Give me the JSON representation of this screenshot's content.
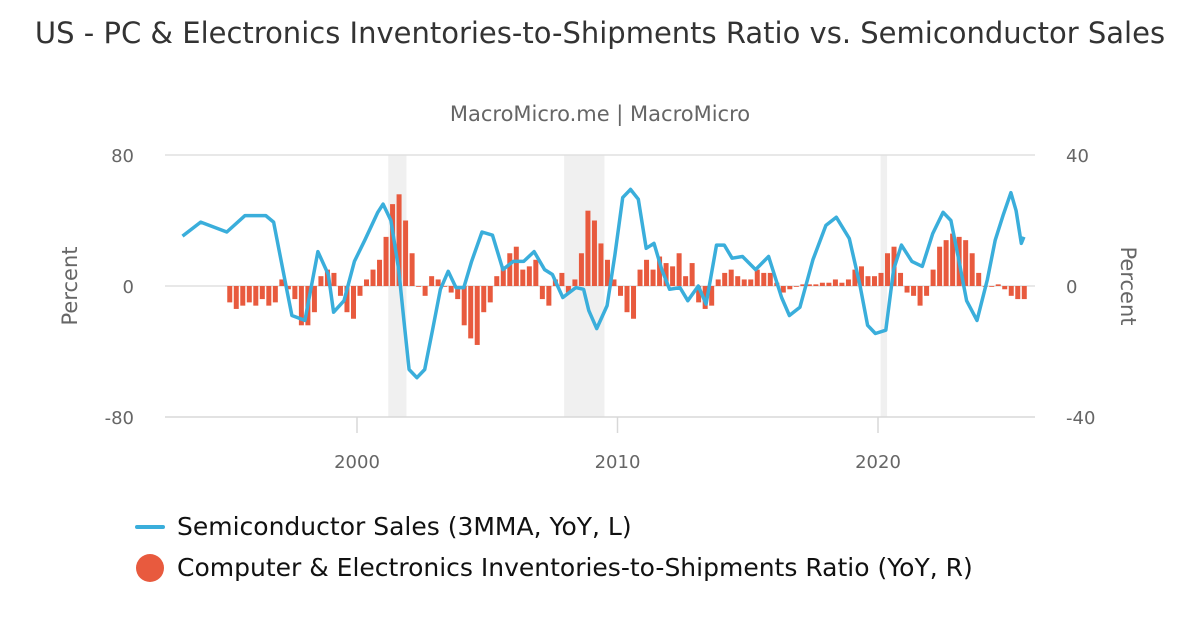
{
  "chart_data": {
    "type": "bar+line",
    "title": "US - PC & Electronics Inventories-to-Shipments Ratio vs. Semiconductor Sales",
    "subtitle": "MacroMicro.me | MacroMicro",
    "ylabel_left": "Percent",
    "ylabel_right": "Percent",
    "ylim_left": [
      -80,
      80
    ],
    "ylim_right": [
      -40,
      40
    ],
    "yticks_left": [
      "80",
      "0",
      "-80"
    ],
    "yticks_right": [
      "40",
      "0",
      "-40"
    ],
    "xticks": [
      "2000",
      "2010",
      "2020"
    ],
    "grid": true,
    "legend_position": "bottom",
    "recession_shading": [
      [
        2001.2,
        2001.9
      ],
      [
        2007.95,
        2009.5
      ],
      [
        2020.1,
        2020.35
      ]
    ],
    "colors": {
      "line": "#3aaedb",
      "bars": "#e85a3e",
      "recession": "#f0f0f0"
    },
    "series": [
      {
        "name": "Semiconductor Sales (3MMA, YoY, L)",
        "type": "line",
        "axis": "left",
        "x": [
          1993.3,
          1994,
          1995,
          1995.7,
          1996.5,
          1996.8,
          1997.3,
          1997.5,
          1998,
          1998.5,
          1998.9,
          1999.1,
          1999.5,
          1999.9,
          2000.3,
          2000.8,
          2001,
          2001.3,
          2001.6,
          2001.8,
          2002,
          2002.3,
          2002.6,
          2002.9,
          2003.2,
          2003.5,
          2003.8,
          2004.1,
          2004.4,
          2004.8,
          2005.2,
          2005.6,
          2006,
          2006.4,
          2006.8,
          2007.2,
          2007.5,
          2007.9,
          2008.4,
          2008.7,
          2008.9,
          2009.2,
          2009.6,
          2009.9,
          2010.2,
          2010.5,
          2010.8,
          2011.1,
          2011.4,
          2011.7,
          2012,
          2012.4,
          2012.7,
          2013.1,
          2013.4,
          2013.8,
          2014.1,
          2014.4,
          2014.8,
          2015.3,
          2015.8,
          2016.3,
          2016.6,
          2017,
          2017.5,
          2018,
          2018.4,
          2018.9,
          2019.3,
          2019.6,
          2019.9,
          2020.3,
          2020.6,
          2020.9,
          2021.3,
          2021.7,
          2022.1,
          2022.5,
          2022.8,
          2023.1,
          2023.4,
          2023.8,
          2024.2,
          2024.5,
          2024.8,
          2025.1,
          2025.3,
          2025.5,
          2025.6
        ],
        "values": [
          30.5,
          39,
          33,
          43,
          43,
          39,
          -2,
          -18,
          -21,
          21,
          7,
          -16,
          -9,
          15,
          28,
          45,
          50,
          40,
          10,
          -21,
          -51,
          -56,
          -51,
          -27,
          -2,
          9,
          -1,
          -1,
          15,
          33,
          31,
          10,
          15,
          15,
          21,
          10,
          7,
          -7,
          -1,
          -2,
          -15,
          -26,
          -12,
          19,
          54,
          59,
          53,
          23,
          26,
          10,
          -2,
          -1,
          -9,
          0,
          -11,
          25,
          25,
          17,
          18,
          10,
          18,
          -7,
          -18,
          -13,
          16,
          37,
          42,
          29,
          1,
          -24,
          -29,
          -27,
          10,
          25,
          15,
          12,
          32,
          45,
          40,
          16,
          -9,
          -21,
          4,
          28,
          43,
          57,
          46,
          26,
          30
        ]
      },
      {
        "name": "Computer & Electronics Inventories-to-Shipments Ratio (YoY, R)",
        "type": "bar",
        "axis": "right",
        "start": 1995.0,
        "frequency": "quarterly",
        "values": [
          -5,
          -7,
          -6,
          -5,
          -6,
          -4,
          -6,
          -5,
          2,
          -1,
          -4,
          -12,
          -12,
          -8,
          3,
          5,
          4,
          -3,
          -8,
          -10,
          -3,
          2,
          5,
          8,
          15,
          25,
          28,
          20,
          10,
          0,
          -3,
          3,
          2,
          0,
          -2,
          -4,
          -12,
          -16,
          -18,
          -8,
          -5,
          3,
          6,
          10,
          12,
          5,
          6,
          8,
          -4,
          -6,
          2,
          4,
          -2,
          2,
          10,
          23,
          20,
          13,
          8,
          2,
          -3,
          -8,
          -10,
          5,
          8,
          5,
          9,
          7,
          6,
          10,
          3,
          7,
          -5,
          -7,
          -6,
          2,
          4,
          5,
          3,
          2,
          2,
          5,
          4,
          4,
          1,
          -2,
          -1,
          0,
          0.5,
          0.5,
          0.5,
          1,
          1,
          2,
          1,
          2,
          5,
          6,
          3,
          3,
          4,
          10,
          12,
          4,
          -2,
          -3,
          -6,
          -3,
          5,
          12,
          14,
          16,
          15,
          14,
          10,
          4,
          0,
          0,
          0.5,
          -1,
          -3,
          -4,
          -4
        ]
      }
    ]
  }
}
